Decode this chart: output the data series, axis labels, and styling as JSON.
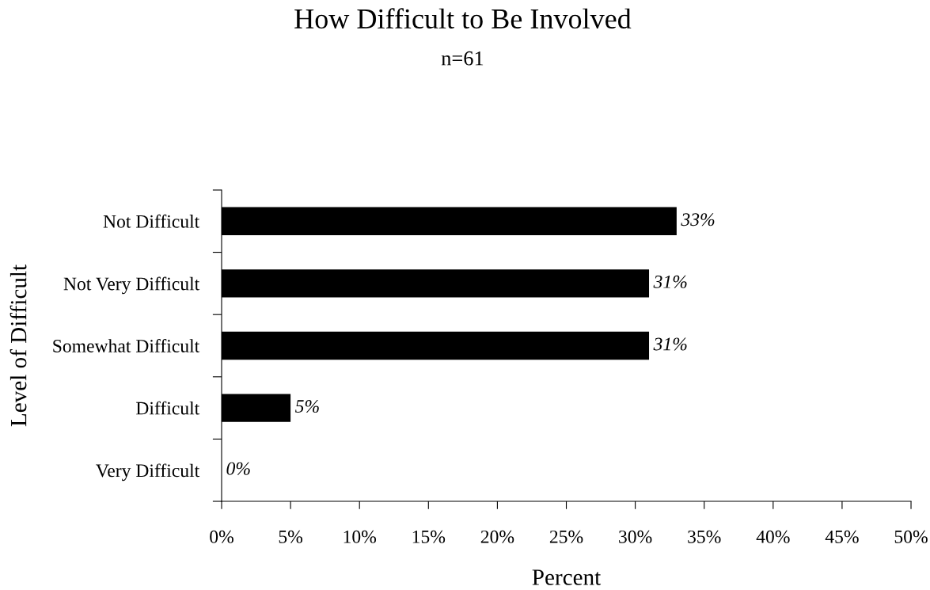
{
  "chart_data": {
    "type": "bar",
    "orientation": "horizontal",
    "title": "How Difficult to Be Involved",
    "subtitle": "n=61",
    "xlabel": "Percent",
    "ylabel": "Level of Difficult",
    "categories": [
      "Not Difficult",
      "Not Very Difficult",
      "Somewhat Difficult",
      "Difficult",
      "Very Difficult"
    ],
    "values": [
      33,
      31,
      31,
      5,
      0
    ],
    "value_labels": [
      "33%",
      "31%",
      "31%",
      "5%",
      "0%"
    ],
    "color": "#000000",
    "xlim": [
      0,
      50
    ],
    "xticks": [
      {
        "value": 0,
        "label": "0%"
      },
      {
        "value": 5,
        "label": "5%"
      },
      {
        "value": 10,
        "label": "10%"
      },
      {
        "value": 15,
        "label": "15%"
      },
      {
        "value": 20,
        "label": "20%"
      },
      {
        "value": 25,
        "label": "25%"
      },
      {
        "value": 30,
        "label": "30%"
      },
      {
        "value": 35,
        "label": "35%"
      },
      {
        "value": 40,
        "label": "40%"
      },
      {
        "value": 45,
        "label": "45%"
      },
      {
        "value": 50,
        "label": "50%"
      }
    ]
  }
}
